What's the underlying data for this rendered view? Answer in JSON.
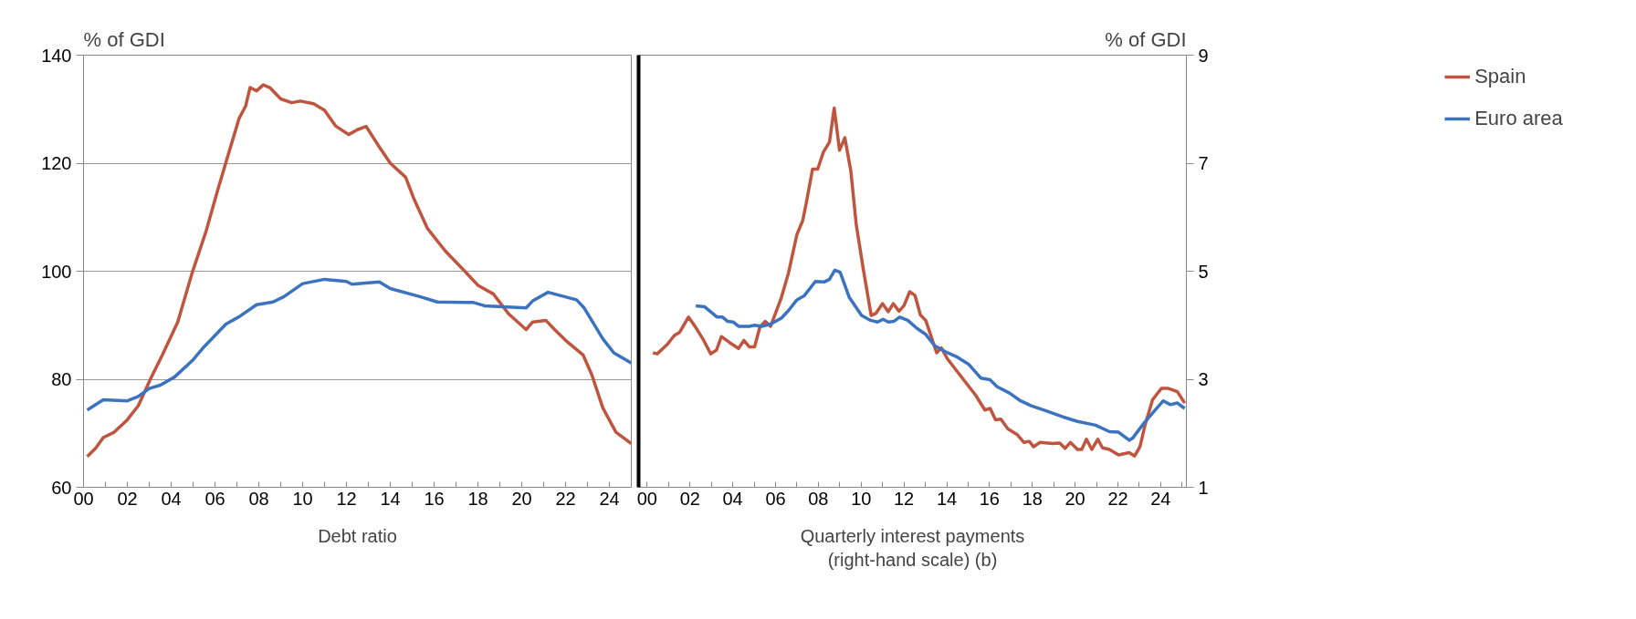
{
  "chart_data": [
    {
      "type": "line",
      "ylabel": "% of GDI",
      "xlabel": "Debt ratio",
      "xlim": [
        2000,
        2025
      ],
      "ylim": [
        60,
        140
      ],
      "yticks": [
        60,
        80,
        100,
        120,
        140
      ],
      "grid": "y",
      "line_style": "solid",
      "xticks": [
        {
          "value": 2000,
          "label": "00"
        },
        {
          "value": 2001,
          "label": null
        },
        {
          "value": 2002,
          "label": "02"
        },
        {
          "value": 2003,
          "label": null
        },
        {
          "value": 2004,
          "label": "04"
        },
        {
          "value": 2005,
          "label": null
        },
        {
          "value": 2006,
          "label": "06"
        },
        {
          "value": 2007,
          "label": null
        },
        {
          "value": 2008,
          "label": "08"
        },
        {
          "value": 2009,
          "label": null
        },
        {
          "value": 2010,
          "label": "10"
        },
        {
          "value": 2011,
          "label": null
        },
        {
          "value": 2012,
          "label": "12"
        },
        {
          "value": 2013,
          "label": null
        },
        {
          "value": 2014,
          "label": "14"
        },
        {
          "value": 2015,
          "label": null
        },
        {
          "value": 2016,
          "label": "16"
        },
        {
          "value": 2017,
          "label": null
        },
        {
          "value": 2018,
          "label": "18"
        },
        {
          "value": 2019,
          "label": null
        },
        {
          "value": 2020,
          "label": "20"
        },
        {
          "value": 2021,
          "label": null
        },
        {
          "value": 2022,
          "label": "22"
        },
        {
          "value": 2023,
          "label": null
        },
        {
          "value": 2024,
          "label": "24"
        }
      ],
      "series": [
        {
          "color": "#c0553f",
          "x": [
            2000.17,
            2000.55,
            2000.9,
            2001.4,
            2002.0,
            2002.5,
            2003.05,
            2003.6,
            2004.3,
            2004.95,
            2005.6,
            2006.1,
            2006.6,
            2007.1,
            2007.4,
            2007.6,
            2007.9,
            2008.2,
            2008.5,
            2009.0,
            2009.5,
            2009.9,
            2010.5,
            2011.0,
            2011.5,
            2012.1,
            2012.5,
            2012.9,
            2013.5,
            2014.0,
            2014.7,
            2015.1,
            2015.7,
            2016.5,
            2017.4,
            2018.0,
            2018.7,
            2019.4,
            2020.2,
            2020.5,
            2021.1,
            2021.5,
            2022.0,
            2022.8,
            2023.2,
            2023.7,
            2024.3,
            2025.0
          ],
          "values": [
            65.7,
            67.2,
            69.2,
            70.2,
            72.5,
            75.1,
            80,
            84.5,
            90.6,
            99.6,
            107.5,
            114.7,
            121.5,
            128.3,
            130.6,
            134,
            133.4,
            134.5,
            134,
            131.9,
            131.2,
            131.5,
            131,
            129.8,
            126.9,
            125.3,
            126.2,
            126.8,
            123,
            120,
            117.4,
            113.2,
            107.9,
            103.8,
            100,
            97.4,
            95.8,
            92.1,
            89.2,
            90.6,
            90.9,
            89.2,
            87.2,
            84.5,
            80.8,
            74.7,
            70.2,
            68.1
          ]
        },
        {
          "color": "#3b73c0",
          "x": [
            2000.17,
            2000.9,
            2002.0,
            2002.5,
            2003.0,
            2003.5,
            2004.15,
            2005.0,
            2005.5,
            2006.5,
            2007.15,
            2007.9,
            2008.65,
            2009.15,
            2010.0,
            2011.0,
            2012.0,
            2012.25,
            2013.5,
            2014.0,
            2015.35,
            2016.15,
            2017.8,
            2018.3,
            2020.2,
            2020.5,
            2021.2,
            2022.5,
            2022.85,
            2023.7,
            2024.2,
            2025.0
          ],
          "values": [
            74.3,
            76.2,
            76,
            76.8,
            78.3,
            78.9,
            80.4,
            83.6,
            86,
            90.2,
            91.7,
            93.8,
            94.3,
            95.3,
            97.7,
            98.5,
            98.1,
            97.6,
            98,
            96.8,
            95.3,
            94.3,
            94.2,
            93.6,
            93.2,
            94.5,
            96.1,
            94.7,
            93.2,
            87.5,
            84.9,
            83
          ]
        }
      ]
    },
    {
      "type": "line",
      "y2label": "% of GDI",
      "xlabel": "Quarterly interest payments (right-hand scale) (b)",
      "xlim": [
        1999.6,
        2025.2
      ],
      "y2lim": [
        1,
        9
      ],
      "y2ticks": [
        1,
        3,
        5,
        7,
        9
      ],
      "grid": "y",
      "line_style": "solid",
      "legend": "right",
      "xticks": [
        {
          "value": 2000,
          "label": "00"
        },
        {
          "value": 2001,
          "label": null
        },
        {
          "value": 2002,
          "label": "02"
        },
        {
          "value": 2003,
          "label": null
        },
        {
          "value": 2004,
          "label": "04"
        },
        {
          "value": 2005,
          "label": null
        },
        {
          "value": 2006,
          "label": "06"
        },
        {
          "value": 2007,
          "label": null
        },
        {
          "value": 2008,
          "label": "08"
        },
        {
          "value": 2009,
          "label": null
        },
        {
          "value": 2010,
          "label": "10"
        },
        {
          "value": 2011,
          "label": null
        },
        {
          "value": 2012,
          "label": "12"
        },
        {
          "value": 2013,
          "label": null
        },
        {
          "value": 2014,
          "label": "14"
        },
        {
          "value": 2015,
          "label": null
        },
        {
          "value": 2016,
          "label": "16"
        },
        {
          "value": 2017,
          "label": null
        },
        {
          "value": 2018,
          "label": "18"
        },
        {
          "value": 2019,
          "label": null
        },
        {
          "value": 2020,
          "label": "20"
        },
        {
          "value": 2021,
          "label": null
        },
        {
          "value": 2022,
          "label": "22"
        },
        {
          "value": 2023,
          "label": null
        },
        {
          "value": 2024,
          "label": "24"
        },
        {
          "value": 2025,
          "label": null
        }
      ],
      "series": [
        {
          "name": "Spain",
          "color": "#c0553f",
          "axis": "y2",
          "x": [
            2000.27,
            2000.47,
            2000.93,
            2001.27,
            2001.52,
            2001.93,
            2002.27,
            2002.6,
            2002.97,
            2003.24,
            2003.47,
            2003.85,
            2004.27,
            2004.52,
            2004.77,
            2005.02,
            2005.27,
            2005.52,
            2005.77,
            2006.27,
            2006.6,
            2007.0,
            2007.27,
            2007.43,
            2007.73,
            2007.97,
            2008.24,
            2008.52,
            2008.74,
            2008.99,
            2009.24,
            2009.52,
            2009.77,
            2010.1,
            2010.47,
            2010.69,
            2011.0,
            2011.27,
            2011.5,
            2011.77,
            2012.0,
            2012.27,
            2012.52,
            2012.77,
            2013.02,
            2013.53,
            2013.75,
            2014.03,
            2014.77,
            2015.36,
            2015.78,
            2016.03,
            2016.28,
            2016.53,
            2016.86,
            2017.28,
            2017.61,
            2017.86,
            2018.06,
            2018.36,
            2018.95,
            2019.28,
            2019.53,
            2019.78,
            2020.11,
            2020.31,
            2020.53,
            2020.78,
            2021.06,
            2021.28,
            2021.6,
            2022.03,
            2022.53,
            2022.78,
            2023.03,
            2023.28,
            2023.62,
            2024.03,
            2024.36,
            2024.78,
            2025.12
          ],
          "values": [
            3.49,
            3.47,
            3.64,
            3.81,
            3.87,
            4.15,
            3.96,
            3.75,
            3.47,
            3.54,
            3.79,
            3.68,
            3.57,
            3.72,
            3.6,
            3.6,
            3.97,
            4.07,
            3.98,
            4.51,
            4.96,
            5.68,
            5.94,
            6.25,
            6.89,
            6.89,
            7.21,
            7.39,
            8.02,
            7.24,
            7.47,
            6.85,
            5.87,
            5.04,
            4.18,
            4.22,
            4.4,
            4.25,
            4.4,
            4.26,
            4.36,
            4.62,
            4.55,
            4.19,
            4.09,
            3.49,
            3.58,
            3.38,
            3,
            2.7,
            2.43,
            2.46,
            2.25,
            2.26,
            2.08,
            1.98,
            1.83,
            1.85,
            1.75,
            1.83,
            1.81,
            1.82,
            1.72,
            1.83,
            1.7,
            1.7,
            1.89,
            1.7,
            1.89,
            1.73,
            1.7,
            1.6,
            1.64,
            1.58,
            1.75,
            2.17,
            2.62,
            2.83,
            2.83,
            2.77,
            2.56
          ]
        },
        {
          "name": "Euro area",
          "color": "#3b73c0",
          "axis": "y2",
          "x": [
            2002.27,
            2002.69,
            2003.27,
            2003.52,
            2003.77,
            2004.02,
            2004.27,
            2004.77,
            2005.02,
            2005.35,
            2005.77,
            2006.27,
            2006.6,
            2007.0,
            2007.35,
            2007.86,
            2008.27,
            2008.52,
            2008.77,
            2009.02,
            2009.44,
            2010.02,
            2010.44,
            2010.77,
            2011.02,
            2011.27,
            2011.52,
            2011.8,
            2012.18,
            2012.61,
            2013.02,
            2013.44,
            2013.94,
            2014.44,
            2015.02,
            2015.6,
            2016.02,
            2016.36,
            2016.95,
            2017.45,
            2017.95,
            2018.61,
            2019.45,
            2020.11,
            2020.95,
            2021.61,
            2022.03,
            2022.53,
            2022.69,
            2023.2,
            2023.7,
            2024.12,
            2024.45,
            2024.78,
            2025.12
          ],
          "values": [
            4.36,
            4.34,
            4.15,
            4.15,
            4.07,
            4.06,
            3.98,
            3.98,
            4,
            3.98,
            4.02,
            4.13,
            4.27,
            4.47,
            4.55,
            4.81,
            4.8,
            4.85,
            5.02,
            4.98,
            4.52,
            4.18,
            4.09,
            4.06,
            4.11,
            4.06,
            4.07,
            4.15,
            4.09,
            3.94,
            3.83,
            3.62,
            3.51,
            3.42,
            3.28,
            3.02,
            2.99,
            2.86,
            2.74,
            2.6,
            2.51,
            2.42,
            2.3,
            2.22,
            2.15,
            2.03,
            2.02,
            1.87,
            1.91,
            2.18,
            2.41,
            2.6,
            2.53,
            2.56,
            2.46
          ]
        }
      ]
    }
  ]
}
